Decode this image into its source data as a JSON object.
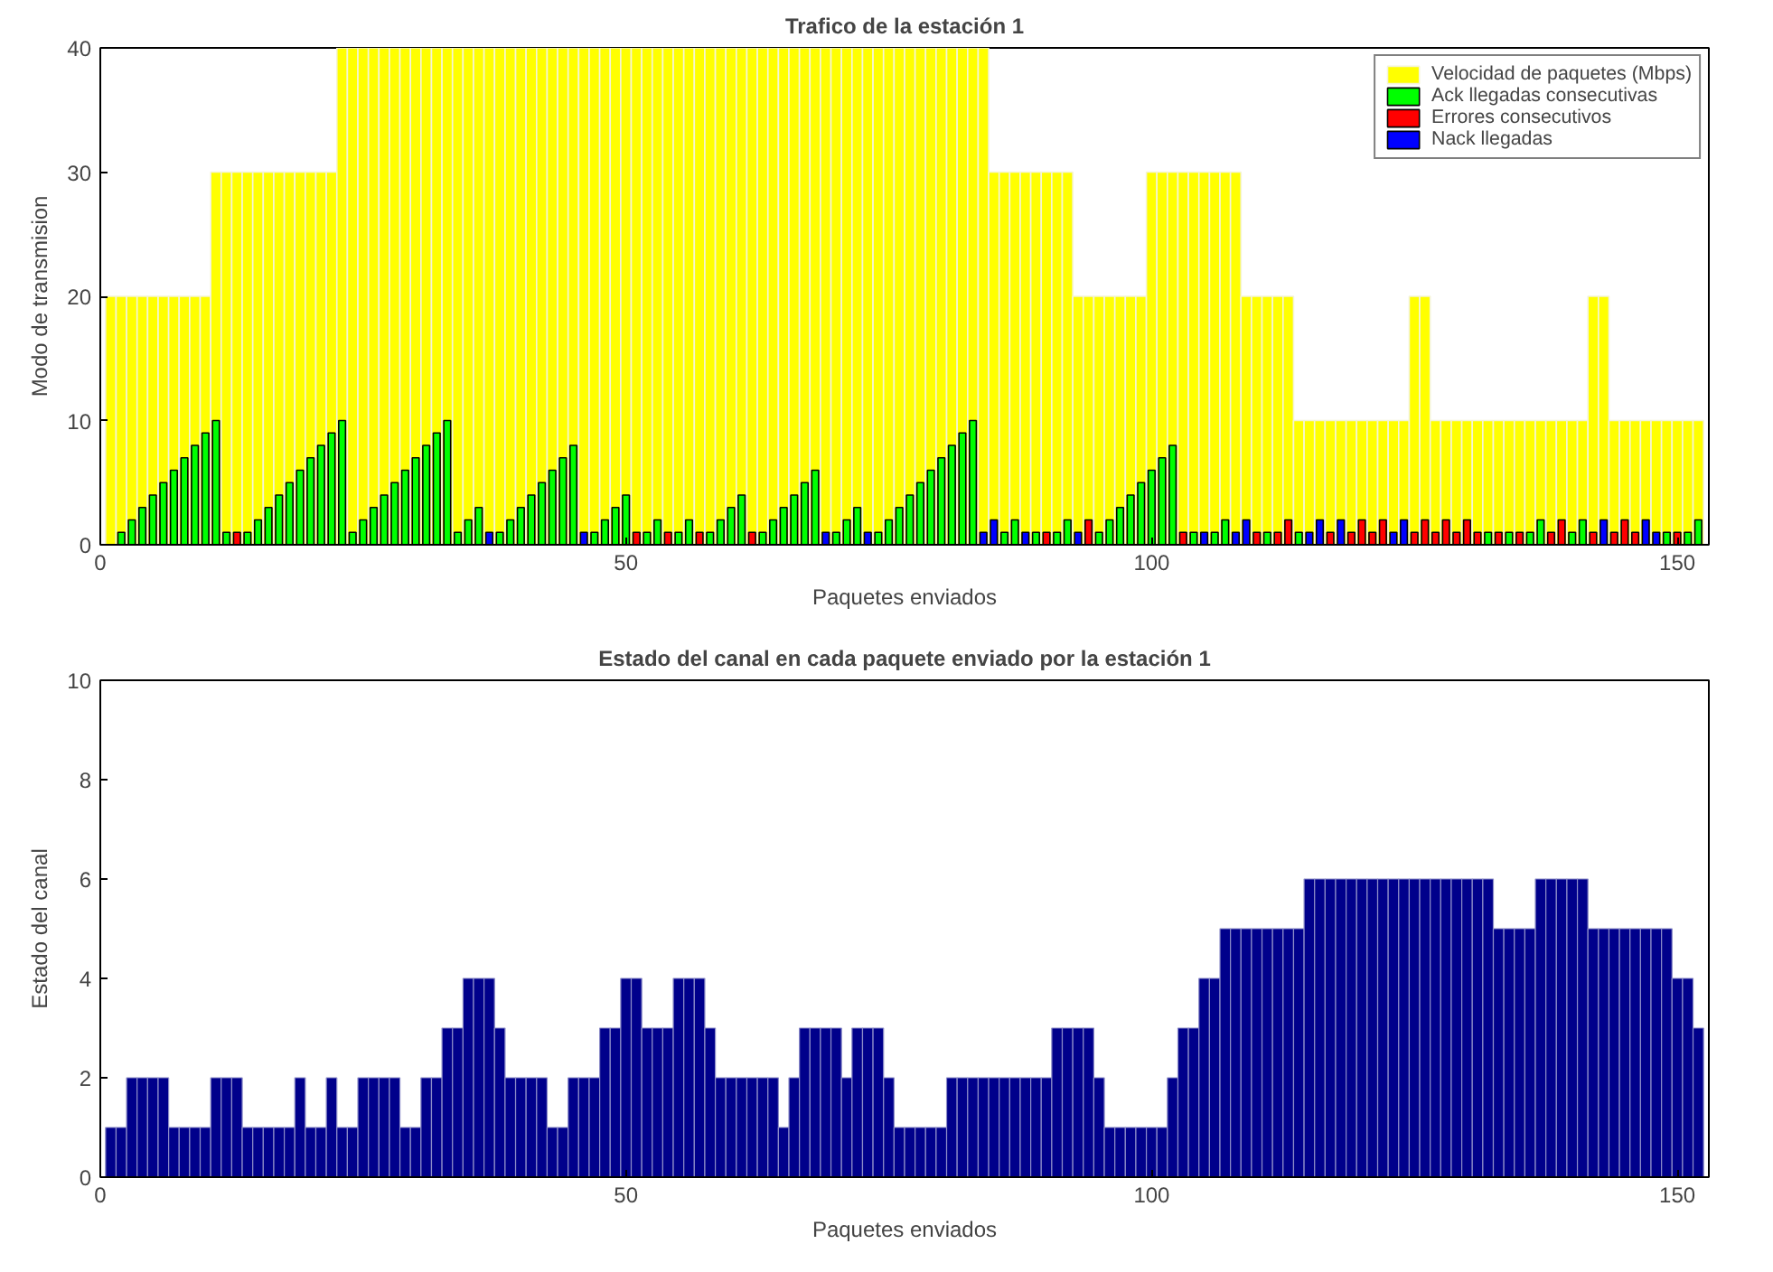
{
  "chart_data": [
    {
      "type": "bar",
      "title": "Trafico de la estación 1",
      "xlabel": "Paquetes enviados",
      "ylabel": "Modo de transmision",
      "legend": "top right",
      "x": [
        1,
        2,
        3,
        4,
        5,
        6,
        7,
        8,
        9,
        10,
        11,
        12,
        13,
        14,
        15,
        16,
        17,
        18,
        19,
        20,
        21,
        22,
        23,
        24,
        25,
        26,
        27,
        28,
        29,
        30,
        31,
        32,
        33,
        34,
        35,
        36,
        37,
        38,
        39,
        40,
        41,
        42,
        43,
        44,
        45,
        46,
        47,
        48,
        49,
        50,
        51,
        52,
        53,
        54,
        55,
        56,
        57,
        58,
        59,
        60,
        61,
        62,
        63,
        64,
        65,
        66,
        67,
        68,
        69,
        70,
        71,
        72,
        73,
        74,
        75,
        76,
        77,
        78,
        79,
        80,
        81,
        82,
        83,
        84,
        85,
        86,
        87,
        88,
        89,
        90,
        91,
        92,
        93,
        94,
        95,
        96,
        97,
        98,
        99,
        100,
        101,
        102,
        103,
        104,
        105,
        106,
        107,
        108,
        109,
        110,
        111,
        112,
        113,
        114,
        115,
        116,
        117,
        118,
        119,
        120,
        121,
        122,
        123,
        124,
        125,
        126,
        127,
        128,
        129,
        130,
        131,
        132,
        133,
        134,
        135,
        136,
        137,
        138,
        139,
        140,
        141,
        142,
        143,
        144,
        145,
        146,
        147,
        148,
        149,
        150,
        151,
        152
      ],
      "xlim": [
        0,
        153
      ],
      "xticks": [
        0,
        50,
        100,
        150
      ],
      "ylim": [
        0,
        40
      ],
      "yticks": [
        0,
        10,
        20,
        30,
        40
      ],
      "series": [
        {
          "name": "Velocidad de paquetes (Mbps)",
          "color": "#ffff00",
          "values": [
            20,
            20,
            20,
            20,
            20,
            20,
            20,
            20,
            20,
            20,
            30,
            30,
            30,
            30,
            30,
            30,
            30,
            30,
            30,
            30,
            30,
            30,
            40,
            40,
            40,
            40,
            40,
            40,
            40,
            40,
            40,
            40,
            40,
            40,
            40,
            40,
            40,
            40,
            40,
            40,
            40,
            40,
            40,
            40,
            40,
            40,
            40,
            40,
            40,
            40,
            40,
            40,
            40,
            40,
            40,
            40,
            40,
            40,
            40,
            40,
            40,
            40,
            40,
            40,
            40,
            40,
            40,
            40,
            40,
            40,
            40,
            40,
            40,
            40,
            40,
            40,
            40,
            40,
            40,
            40,
            40,
            40,
            40,
            40,
            30,
            30,
            30,
            30,
            30,
            30,
            30,
            30,
            20,
            20,
            20,
            20,
            20,
            20,
            20,
            30,
            30,
            30,
            30,
            30,
            30,
            30,
            30,
            30,
            20,
            20,
            20,
            20,
            20,
            10,
            10,
            10,
            10,
            10,
            10,
            10,
            10,
            10,
            10,
            10,
            20,
            20,
            10,
            10,
            10,
            10,
            10,
            10,
            10,
            10,
            10,
            10,
            10,
            10,
            10,
            10,
            10,
            20,
            20,
            10,
            10,
            10,
            10,
            10,
            10,
            10,
            10,
            10
          ]
        },
        {
          "name": "Ack llegadas consecutivas",
          "color": "#00ff00",
          "x": [
            2,
            3,
            4,
            5,
            6,
            7,
            8,
            9,
            10,
            11,
            12,
            14,
            15,
            16,
            17,
            18,
            19,
            20,
            21,
            22,
            23,
            24,
            25,
            26,
            27,
            28,
            29,
            30,
            31,
            32,
            33,
            34,
            35,
            36,
            38,
            39,
            40,
            41,
            42,
            43,
            44,
            45,
            47,
            48,
            49,
            50,
            52,
            53,
            55,
            56,
            58,
            59,
            60,
            61,
            63,
            64,
            65,
            66,
            67,
            68,
            70,
            71,
            72,
            74,
            75,
            76,
            77,
            78,
            79,
            80,
            81,
            82,
            83,
            86,
            87,
            89,
            91,
            92,
            95,
            96,
            97,
            98,
            99,
            100,
            101,
            102,
            104,
            106,
            107,
            111,
            114,
            132,
            134,
            136,
            137,
            140,
            141,
            149,
            151,
            152
          ],
          "values": [
            1,
            2,
            3,
            4,
            5,
            6,
            7,
            8,
            9,
            10,
            1,
            1,
            2,
            3,
            4,
            5,
            6,
            7,
            8,
            9,
            10,
            1,
            2,
            3,
            4,
            5,
            6,
            7,
            8,
            9,
            10,
            1,
            2,
            3,
            1,
            2,
            3,
            4,
            5,
            6,
            7,
            8,
            1,
            2,
            3,
            4,
            1,
            2,
            1,
            2,
            1,
            2,
            3,
            4,
            1,
            2,
            3,
            4,
            5,
            6,
            1,
            2,
            3,
            1,
            2,
            3,
            4,
            5,
            6,
            7,
            8,
            9,
            10,
            1,
            2,
            1,
            1,
            2,
            1,
            2,
            3,
            4,
            5,
            6,
            7,
            8,
            1,
            1,
            2,
            1,
            1,
            1,
            1,
            1,
            2,
            1,
            2,
            1,
            1,
            2
          ]
        },
        {
          "name": "Errores consecutivos",
          "color": "#ff0000",
          "x": [
            13,
            51,
            54,
            57,
            62,
            90,
            94,
            103,
            110,
            112,
            113,
            117,
            119,
            120,
            121,
            122,
            125,
            126,
            127,
            128,
            129,
            130,
            131,
            133,
            135,
            138,
            139,
            142,
            144,
            145,
            146,
            150
          ],
          "values": [
            1,
            1,
            1,
            1,
            1,
            1,
            2,
            1,
            1,
            1,
            2,
            1,
            1,
            2,
            1,
            2,
            1,
            2,
            1,
            2,
            1,
            2,
            1,
            1,
            1,
            1,
            2,
            1,
            1,
            2,
            1,
            1
          ]
        },
        {
          "name": "Nack llegadas",
          "color": "#0000ff",
          "x": [
            37,
            46,
            69,
            73,
            84,
            85,
            88,
            93,
            105,
            108,
            109,
            115,
            116,
            118,
            123,
            124,
            143,
            147,
            148
          ],
          "values": [
            1,
            1,
            1,
            1,
            1,
            2,
            1,
            1,
            1,
            1,
            2,
            1,
            2,
            2,
            1,
            2,
            2,
            2,
            1
          ]
        }
      ]
    },
    {
      "type": "bar",
      "title": "Estado del canal en cada paquete enviado por la estación 1",
      "xlabel": "Paquetes enviados",
      "ylabel": "Estado del canal",
      "color": "#00008b",
      "x": [
        1,
        2,
        3,
        4,
        5,
        6,
        7,
        8,
        9,
        10,
        11,
        12,
        13,
        14,
        15,
        16,
        17,
        18,
        19,
        20,
        21,
        22,
        23,
        24,
        25,
        26,
        27,
        28,
        29,
        30,
        31,
        32,
        33,
        34,
        35,
        36,
        37,
        38,
        39,
        40,
        41,
        42,
        43,
        44,
        45,
        46,
        47,
        48,
        49,
        50,
        51,
        52,
        53,
        54,
        55,
        56,
        57,
        58,
        59,
        60,
        61,
        62,
        63,
        64,
        65,
        66,
        67,
        68,
        69,
        70,
        71,
        72,
        73,
        74,
        75,
        76,
        77,
        78,
        79,
        80,
        81,
        82,
        83,
        84,
        85,
        86,
        87,
        88,
        89,
        90,
        91,
        92,
        93,
        94,
        95,
        96,
        97,
        98,
        99,
        100,
        101,
        102,
        103,
        104,
        105,
        106,
        107,
        108,
        109,
        110,
        111,
        112,
        113,
        114,
        115,
        116,
        117,
        118,
        119,
        120,
        121,
        122,
        123,
        124,
        125,
        126,
        127,
        128,
        129,
        130,
        131,
        132,
        133,
        134,
        135,
        136,
        137,
        138,
        139,
        140,
        141,
        142,
        143,
        144,
        145,
        146,
        147,
        148,
        149,
        150,
        151,
        152
      ],
      "xlim": [
        0,
        153
      ],
      "xticks": [
        0,
        50,
        100,
        150
      ],
      "ylim": [
        0,
        10
      ],
      "yticks": [
        0,
        2,
        4,
        6,
        8,
        10
      ],
      "values": [
        1,
        1,
        2,
        2,
        2,
        2,
        1,
        1,
        1,
        1,
        2,
        2,
        2,
        1,
        1,
        1,
        1,
        1,
        2,
        1,
        1,
        2,
        1,
        1,
        2,
        2,
        2,
        2,
        1,
        1,
        2,
        2,
        3,
        3,
        4,
        4,
        4,
        3,
        2,
        2,
        2,
        2,
        1,
        1,
        2,
        2,
        2,
        3,
        3,
        4,
        4,
        3,
        3,
        3,
        4,
        4,
        4,
        3,
        2,
        2,
        2,
        2,
        2,
        2,
        1,
        2,
        3,
        3,
        3,
        3,
        2,
        3,
        3,
        3,
        2,
        1,
        1,
        1,
        1,
        1,
        2,
        2,
        2,
        2,
        2,
        2,
        2,
        2,
        2,
        2,
        3,
        3,
        3,
        3,
        2,
        1,
        1,
        1,
        1,
        1,
        1,
        2,
        3,
        3,
        4,
        4,
        5,
        5,
        5,
        5,
        5,
        5,
        5,
        5,
        6,
        6,
        6,
        6,
        6,
        6,
        6,
        6,
        6,
        6,
        6,
        6,
        6,
        6,
        6,
        6,
        6,
        6,
        5,
        5,
        5,
        5,
        6,
        6,
        6,
        6,
        6,
        5,
        5,
        5,
        5,
        5,
        5,
        5,
        5,
        4,
        4,
        3
      ]
    }
  ]
}
